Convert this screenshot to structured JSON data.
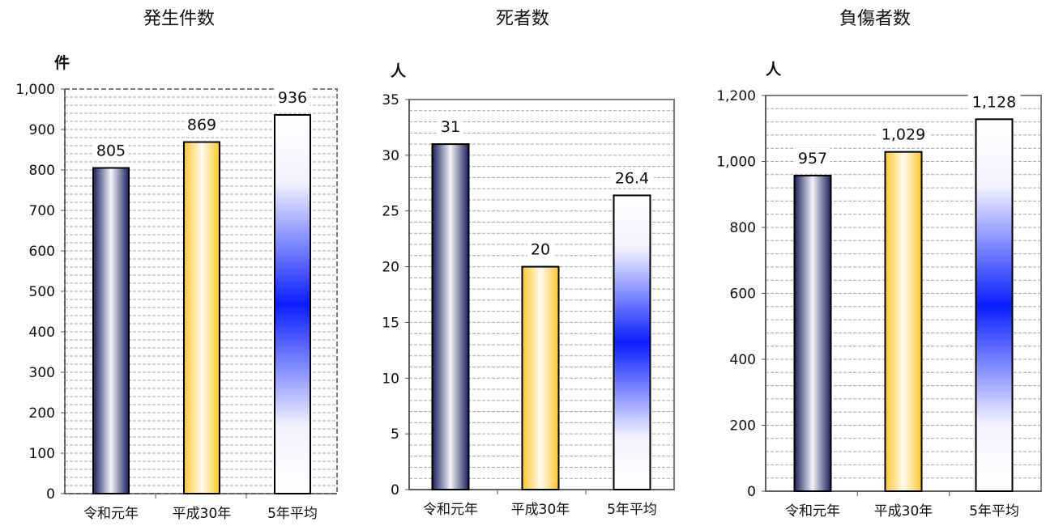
{
  "chart_data": [
    {
      "type": "bar",
      "title": "発生件数",
      "unit_label": "件",
      "categories": [
        "令和元年",
        "平成30年",
        "5年平均"
      ],
      "values": [
        805,
        869,
        936
      ],
      "value_labels": [
        "805",
        "869",
        "936"
      ],
      "ylim": [
        0,
        1000
      ],
      "ticks": [
        0,
        100,
        200,
        300,
        400,
        500,
        600,
        700,
        800,
        900,
        1000
      ],
      "tick_labels": [
        "0",
        "100",
        "200",
        "300",
        "400",
        "500",
        "600",
        "700",
        "800",
        "900",
        "1,000"
      ],
      "grid": true,
      "bar_styles": [
        "navy-gradient",
        "yellow-gradient",
        "blue-gradient"
      ]
    },
    {
      "type": "bar",
      "title": "死者数",
      "unit_label": "人",
      "categories": [
        "令和元年",
        "平成30年",
        "5年平均"
      ],
      "values": [
        31,
        20,
        26.4
      ],
      "value_labels": [
        "31",
        "20",
        "26.4"
      ],
      "ylim": [
        0,
        35
      ],
      "ticks": [
        0,
        5,
        10,
        15,
        20,
        25,
        30,
        35
      ],
      "tick_labels": [
        "0",
        "5",
        "10",
        "15",
        "20",
        "25",
        "30",
        "35"
      ],
      "grid": true,
      "bar_styles": [
        "navy-gradient",
        "yellow-gradient",
        "blue-gradient"
      ]
    },
    {
      "type": "bar",
      "title": "負傷者数",
      "unit_label": "人",
      "categories": [
        "令和元年",
        "平成30年",
        "5年平均"
      ],
      "values": [
        957,
        1029,
        1128
      ],
      "value_labels": [
        "957",
        "1,029",
        "1,128"
      ],
      "ylim": [
        0,
        1200
      ],
      "ticks": [
        0,
        200,
        400,
        600,
        800,
        1000,
        1200
      ],
      "tick_labels": [
        "0",
        "200",
        "400",
        "600",
        "800",
        "1,000",
        "1,200"
      ],
      "grid": true,
      "bar_styles": [
        "navy-gradient",
        "yellow-gradient",
        "blue-gradient"
      ]
    }
  ],
  "colors": {
    "navy": "#1a1f5c",
    "yellow": "#ffc72c",
    "blue": "#0a1eff",
    "grid": "#a6a6a6",
    "frame": "#7f7f7f",
    "bar_outline": "#000000"
  }
}
